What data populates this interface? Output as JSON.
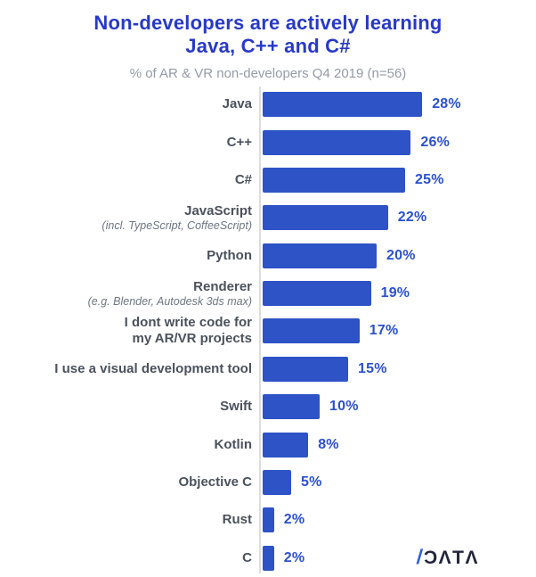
{
  "header": {
    "title_line1": "Non-developers are actively learning",
    "title_line2": "Java, C++ and C#",
    "subtitle": "% of AR & VR non-developers Q4 2019 (n=56)"
  },
  "chart_data": {
    "type": "bar",
    "orientation": "horizontal",
    "title": "Non-developers are actively learning Java, C++ and C#",
    "subtitle": "% of AR & VR non-developers Q4 2019 (n=56)",
    "unit": "%",
    "xlim": [
      0,
      30
    ],
    "grid": false,
    "value_label_position": "end-of-bar",
    "items": [
      {
        "label_lines": [
          "Java"
        ],
        "sublabel": "",
        "value": 28,
        "display": "28%"
      },
      {
        "label_lines": [
          "C++"
        ],
        "sublabel": "",
        "value": 26,
        "display": "26%"
      },
      {
        "label_lines": [
          "C#"
        ],
        "sublabel": "",
        "value": 25,
        "display": "25%"
      },
      {
        "label_lines": [
          "JavaScript"
        ],
        "sublabel": "(incl. TypeScript, CoffeeScript)",
        "value": 22,
        "display": "22%"
      },
      {
        "label_lines": [
          "Python"
        ],
        "sublabel": "",
        "value": 20,
        "display": "20%"
      },
      {
        "label_lines": [
          "Renderer"
        ],
        "sublabel": "(e.g. Blender, Autodesk 3ds max)",
        "value": 19,
        "display": "19%"
      },
      {
        "label_lines": [
          "I dont write code for",
          "my AR/VR projects"
        ],
        "sublabel": "",
        "value": 17,
        "display": "17%"
      },
      {
        "label_lines": [
          "I use a visual development tool"
        ],
        "sublabel": "",
        "value": 15,
        "display": "15%"
      },
      {
        "label_lines": [
          "Swift"
        ],
        "sublabel": "",
        "value": 10,
        "display": "10%"
      },
      {
        "label_lines": [
          "Kotlin"
        ],
        "sublabel": "",
        "value": 8,
        "display": "8%"
      },
      {
        "label_lines": [
          "Objective C"
        ],
        "sublabel": "",
        "value": 5,
        "display": "5%"
      },
      {
        "label_lines": [
          "Rust"
        ],
        "sublabel": "",
        "value": 2,
        "display": "2%"
      },
      {
        "label_lines": [
          "C"
        ],
        "sublabel": "",
        "value": 2,
        "display": "2%"
      }
    ],
    "colors": {
      "bar": "#2e53c6",
      "value_label": "#2b51cf",
      "title": "#2839c8",
      "category_label": "#4b525c",
      "category_sublabel": "#6e7680",
      "subtitle_text": "#959ba5",
      "axis_line": "#dcdddf"
    }
  },
  "logo": {
    "slash": "/",
    "word_display": "ƆΛTΛ",
    "reads": "DATA"
  }
}
